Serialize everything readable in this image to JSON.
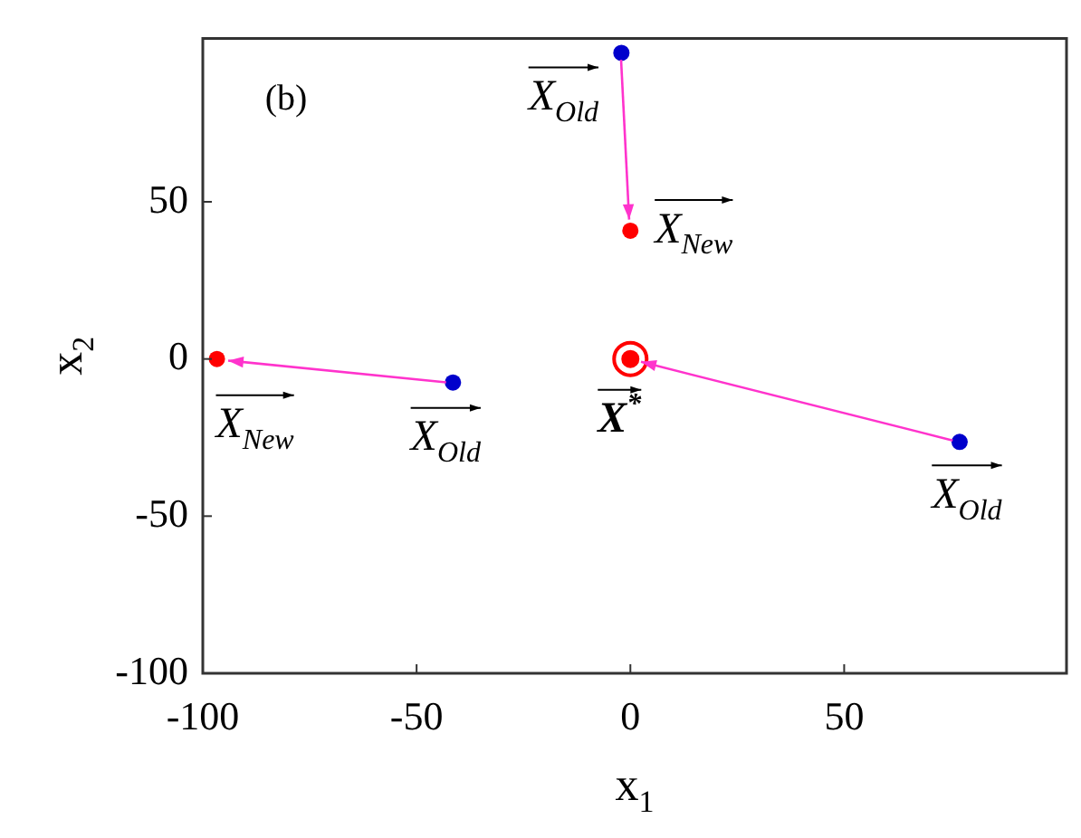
{
  "chart_data": {
    "type": "scatter",
    "xlabel": "x$_{1}$",
    "ylabel": "x$_{2}$",
    "xlim": [
      -100,
      102
    ],
    "ylim": [
      -100,
      102
    ],
    "xticks": [
      -100,
      -50,
      0,
      50
    ],
    "yticks": [
      -100,
      -50,
      0,
      50
    ],
    "grid": false,
    "legend": false,
    "series": [
      {
        "type": "scatter",
        "color": "#0000cc",
        "marker": "circle",
        "x": [
          -2.1,
          -41.5,
          77
        ],
        "values": [
          97.4,
          -7.5,
          -26.4
        ]
      },
      {
        "type": "scatter",
        "color": "#ff0000",
        "marker": "circle",
        "x": [
          0,
          -96.7
        ],
        "values": [
          40.8,
          0
        ]
      },
      {
        "type": "scatter",
        "color": "#ff0000",
        "marker": "circle",
        "x": [
          0
        ],
        "values": [
          0
        ]
      }
    ],
    "annotations": [
      "(b)",
      {
        "text": "X$_{Old}$",
        "x": -2.1,
        "y": 97.4
      },
      {
        "text": "X$_{New}$",
        "x": 0,
        "y": 40.8
      },
      {
        "text": "X$_{New}$",
        "x": -96.7,
        "y": 0
      },
      {
        "text": "X$_{Old}$",
        "x": -41.5,
        "y": -7.5
      },
      {
        "text": "X$^{*}$",
        "x": 0,
        "y": 0
      },
      {
        "text": "X$_{Old}$",
        "x": 77,
        "y": -26.4
      }
    ]
  }
}
